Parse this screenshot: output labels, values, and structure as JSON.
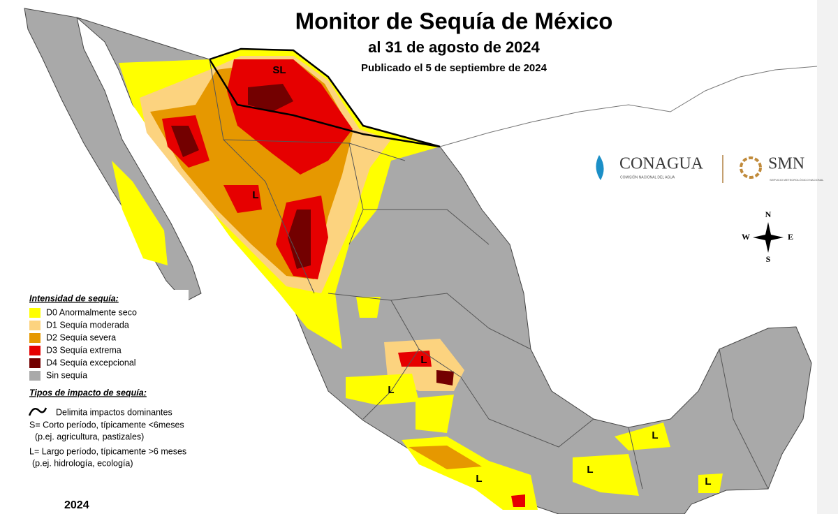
{
  "header": {
    "title": "Monitor de Sequía de México",
    "date": "al 31 de agosto de 2024",
    "published": "Publicado el 5 de septiembre de 2024"
  },
  "logos": {
    "conagua": "CONAGUA",
    "conagua_sub": "COMISIÓN NACIONAL DEL AGUA",
    "smn": "SMN",
    "smn_sub": "SERVICIO METEOROLÓGICO NACIONAL"
  },
  "compass": {
    "n": "N",
    "e": "E",
    "s": "S",
    "w": "W"
  },
  "legend": {
    "title": "Intensidad de sequía:",
    "items": [
      {
        "label": "D0 Anormalmente seco",
        "color": "#ffff00"
      },
      {
        "label": "D1 Sequía moderada",
        "color": "#fcd37f"
      },
      {
        "label": "D2 Sequía severa",
        "color": "#e69800"
      },
      {
        "label": "D3 Sequía extrema",
        "color": "#e60000"
      },
      {
        "label": "D4 Sequía excepcional",
        "color": "#730000"
      },
      {
        "label": "Sin sequía",
        "color": "#a9a9a9"
      }
    ],
    "impact_title": "Tipos de impacto de sequía:",
    "impact_lines": [
      "Delimita impactos dominantes",
      "S= Corto período, típicamente <6meses",
      "(p.ej. agricultura, pastizales)",
      "L= Largo período, típicamente >6 meses",
      "(p.ej. hidrología, ecología)"
    ]
  },
  "map_labels": [
    "SL",
    "L",
    "L",
    "L",
    "L",
    "L",
    "L",
    "L"
  ],
  "year": "2024"
}
